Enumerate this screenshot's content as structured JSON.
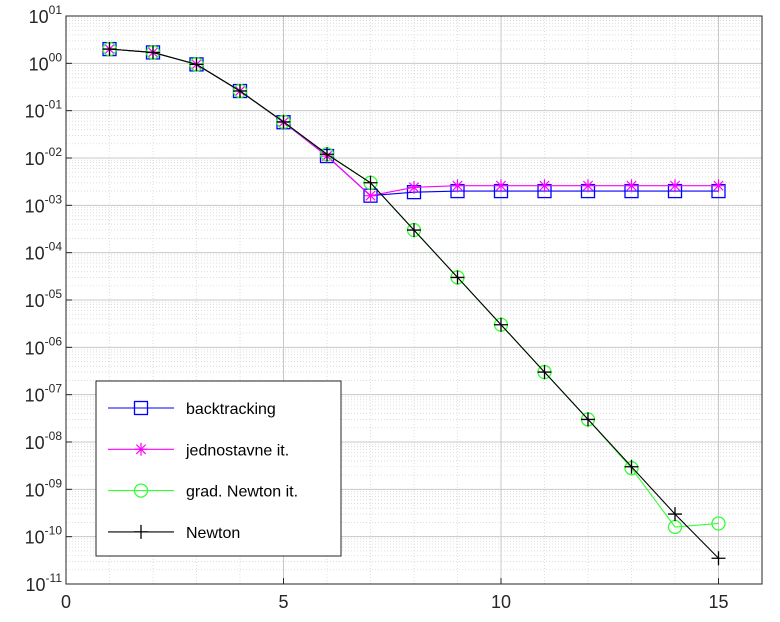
{
  "chart_data": {
    "type": "line",
    "title": "",
    "xlabel": "",
    "ylabel": "",
    "xscale": "linear",
    "yscale": "log",
    "xlim": [
      0,
      16
    ],
    "ylim_exponents": [
      -11,
      1
    ],
    "xticks": [
      {
        "value": 0,
        "label": "0"
      },
      {
        "value": 5,
        "label": "5"
      },
      {
        "value": 10,
        "label": "10"
      },
      {
        "value": 15,
        "label": "15"
      }
    ],
    "yticks": [
      {
        "exp": 1,
        "base": "10",
        "sup": "01"
      },
      {
        "exp": 0,
        "base": "10",
        "sup": "00"
      },
      {
        "exp": -1,
        "base": "10",
        "sup": "-01"
      },
      {
        "exp": -2,
        "base": "10",
        "sup": "-02"
      },
      {
        "exp": -3,
        "base": "10",
        "sup": "-03"
      },
      {
        "exp": -4,
        "base": "10",
        "sup": "-04"
      },
      {
        "exp": -5,
        "base": "10",
        "sup": "-05"
      },
      {
        "exp": -6,
        "base": "10",
        "sup": "-06"
      },
      {
        "exp": -7,
        "base": "10",
        "sup": "-07"
      },
      {
        "exp": -8,
        "base": "10",
        "sup": "-08"
      },
      {
        "exp": -9,
        "base": "10",
        "sup": "-09"
      },
      {
        "exp": -10,
        "base": "10",
        "sup": "-10"
      },
      {
        "exp": -11,
        "base": "10",
        "sup": "-11"
      }
    ],
    "grid": true,
    "minor_grid": true,
    "legend_position": "bottom-left",
    "series": [
      {
        "name": "backtracking",
        "color": "#0000ff",
        "marker": "square",
        "x": [
          1,
          2,
          3,
          4,
          5,
          6,
          7,
          8,
          9,
          10,
          11,
          12,
          13,
          14,
          15
        ],
        "y": [
          2.0,
          1.7,
          0.95,
          0.26,
          0.057,
          0.011,
          0.0016,
          0.0019,
          0.002,
          0.002,
          0.002,
          0.002,
          0.002,
          0.002,
          0.002
        ]
      },
      {
        "name": "jednostavne it.",
        "color": "#ff00ff",
        "marker": "asterisk",
        "x": [
          1,
          2,
          3,
          4,
          5,
          6,
          7,
          8,
          9,
          10,
          11,
          12,
          13,
          14,
          15
        ],
        "y": [
          2.0,
          1.7,
          0.95,
          0.26,
          0.057,
          0.011,
          0.0016,
          0.0024,
          0.0026,
          0.0026,
          0.0026,
          0.0026,
          0.0026,
          0.0026,
          0.0026
        ]
      },
      {
        "name": "grad. Newton it.",
        "color": "#33ff33",
        "marker": "circle",
        "x": [
          1,
          2,
          3,
          4,
          5,
          6,
          7,
          8,
          9,
          10,
          11,
          12,
          13,
          14,
          15
        ],
        "y": [
          2.0,
          1.7,
          0.95,
          0.26,
          0.058,
          0.012,
          0.003,
          0.0003,
          3e-05,
          3e-06,
          3e-07,
          3e-08,
          2.8e-09,
          1.6e-10,
          1.9e-10
        ]
      },
      {
        "name": "Newton",
        "color": "#000000",
        "marker": "plus",
        "x": [
          1,
          2,
          3,
          4,
          5,
          6,
          7,
          8,
          9,
          10,
          11,
          12,
          13,
          14,
          15
        ],
        "y": [
          2.0,
          1.7,
          0.95,
          0.26,
          0.058,
          0.012,
          0.003,
          0.0003,
          3e-05,
          3e-06,
          3e-07,
          3e-08,
          3e-09,
          3e-10,
          3.5e-11
        ]
      }
    ]
  }
}
